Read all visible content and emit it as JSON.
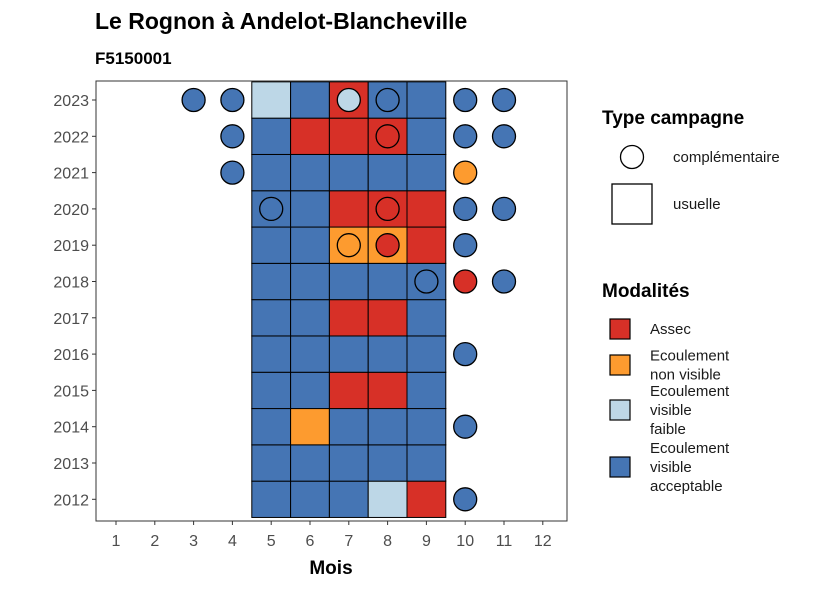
{
  "chart_data": {
    "type": "heatmap",
    "title": "Le Rognon à Andelot-Blancheville",
    "subtitle": "F5150001",
    "xlabel": "Mois",
    "ylabel": "",
    "x_ticks": [
      "1",
      "2",
      "3",
      "4",
      "5",
      "6",
      "7",
      "8",
      "9",
      "10",
      "11",
      "12"
    ],
    "years": [
      "2012",
      "2013",
      "2014",
      "2015",
      "2016",
      "2017",
      "2018",
      "2019",
      "2020",
      "2021",
      "2022",
      "2023"
    ],
    "xlim": [
      0.5,
      12.5
    ],
    "grid": false,
    "legend_position": "right",
    "modalites": [
      {
        "key": "assec",
        "label_lines": [
          "Assec"
        ],
        "color": "#d73027"
      },
      {
        "key": "non_visible",
        "label_lines": [
          "Ecoulement",
          "non visible"
        ],
        "color": "#fd9b2f"
      },
      {
        "key": "faible",
        "label_lines": [
          "Ecoulement",
          "visible",
          "faible"
        ],
        "color": "#bdd7e7"
      },
      {
        "key": "acceptable",
        "label_lines": [
          "Ecoulement",
          "visible",
          "acceptable"
        ],
        "color": "#4575b4"
      }
    ],
    "campaign_legend": {
      "title": "Type campagne",
      "items": [
        {
          "key": "complementaire",
          "label": "complémentaire",
          "shape": "circle"
        },
        {
          "key": "usuelle",
          "label": "usuelle",
          "shape": "square"
        }
      ]
    },
    "modalites_title": "Modalités",
    "usual": [
      {
        "year": "2012",
        "values": [
          [
            "5",
            "acceptable"
          ],
          [
            "6",
            "acceptable"
          ],
          [
            "7",
            "acceptable"
          ],
          [
            "8",
            "faible"
          ],
          [
            "9",
            "assec"
          ]
        ]
      },
      {
        "year": "2013",
        "values": [
          [
            "5",
            "acceptable"
          ],
          [
            "6",
            "acceptable"
          ],
          [
            "7",
            "acceptable"
          ],
          [
            "8",
            "acceptable"
          ],
          [
            "9",
            "acceptable"
          ]
        ]
      },
      {
        "year": "2014",
        "values": [
          [
            "5",
            "acceptable"
          ],
          [
            "6",
            "non_visible"
          ],
          [
            "7",
            "acceptable"
          ],
          [
            "8",
            "acceptable"
          ],
          [
            "9",
            "acceptable"
          ]
        ]
      },
      {
        "year": "2015",
        "values": [
          [
            "5",
            "acceptable"
          ],
          [
            "6",
            "acceptable"
          ],
          [
            "7",
            "assec"
          ],
          [
            "8",
            "assec"
          ],
          [
            "9",
            "acceptable"
          ]
        ]
      },
      {
        "year": "2016",
        "values": [
          [
            "5",
            "acceptable"
          ],
          [
            "6",
            "acceptable"
          ],
          [
            "7",
            "acceptable"
          ],
          [
            "8",
            "acceptable"
          ],
          [
            "9",
            "acceptable"
          ]
        ]
      },
      {
        "year": "2017",
        "values": [
          [
            "5",
            "acceptable"
          ],
          [
            "6",
            "acceptable"
          ],
          [
            "7",
            "assec"
          ],
          [
            "8",
            "assec"
          ],
          [
            "9",
            "acceptable"
          ]
        ]
      },
      {
        "year": "2018",
        "values": [
          [
            "5",
            "acceptable"
          ],
          [
            "6",
            "acceptable"
          ],
          [
            "7",
            "acceptable"
          ],
          [
            "8",
            "acceptable"
          ],
          [
            "9",
            "acceptable"
          ]
        ]
      },
      {
        "year": "2019",
        "values": [
          [
            "5",
            "acceptable"
          ],
          [
            "6",
            "acceptable"
          ],
          [
            "7",
            "non_visible"
          ],
          [
            "8",
            "non_visible"
          ],
          [
            "9",
            "assec"
          ]
        ]
      },
      {
        "year": "2020",
        "values": [
          [
            "5",
            "acceptable"
          ],
          [
            "6",
            "acceptable"
          ],
          [
            "7",
            "assec"
          ],
          [
            "8",
            "assec"
          ],
          [
            "9",
            "assec"
          ]
        ]
      },
      {
        "year": "2021",
        "values": [
          [
            "5",
            "acceptable"
          ],
          [
            "6",
            "acceptable"
          ],
          [
            "7",
            "acceptable"
          ],
          [
            "8",
            "acceptable"
          ],
          [
            "9",
            "acceptable"
          ]
        ]
      },
      {
        "year": "2022",
        "values": [
          [
            "5",
            "acceptable"
          ],
          [
            "6",
            "assec"
          ],
          [
            "7",
            "assec"
          ],
          [
            "8",
            "assec"
          ],
          [
            "9",
            "acceptable"
          ]
        ]
      },
      {
        "year": "2023",
        "values": [
          [
            "5",
            "faible"
          ],
          [
            "6",
            "acceptable"
          ],
          [
            "7",
            "assec"
          ],
          [
            "8",
            "acceptable"
          ],
          [
            "9",
            "acceptable"
          ]
        ]
      }
    ],
    "complementary": [
      {
        "year": "2012",
        "values": [
          [
            "10",
            "acceptable"
          ]
        ]
      },
      {
        "year": "2014",
        "values": [
          [
            "10",
            "acceptable"
          ]
        ]
      },
      {
        "year": "2016",
        "values": [
          [
            "10",
            "acceptable"
          ]
        ]
      },
      {
        "year": "2018",
        "values": [
          [
            "9",
            "acceptable"
          ],
          [
            "10",
            "assec"
          ],
          [
            "11",
            "acceptable"
          ]
        ]
      },
      {
        "year": "2019",
        "values": [
          [
            "7",
            "non_visible"
          ],
          [
            "8",
            "assec"
          ],
          [
            "10",
            "acceptable"
          ]
        ]
      },
      {
        "year": "2020",
        "values": [
          [
            "5",
            "acceptable"
          ],
          [
            "8",
            "assec"
          ],
          [
            "10",
            "acceptable"
          ],
          [
            "11",
            "acceptable"
          ]
        ]
      },
      {
        "year": "2021",
        "values": [
          [
            "4",
            "acceptable"
          ],
          [
            "10",
            "non_visible"
          ]
        ]
      },
      {
        "year": "2022",
        "values": [
          [
            "4",
            "acceptable"
          ],
          [
            "8",
            "assec"
          ],
          [
            "10",
            "acceptable"
          ],
          [
            "11",
            "acceptable"
          ]
        ]
      },
      {
        "year": "2023",
        "values": [
          [
            "3",
            "acceptable"
          ],
          [
            "4",
            "acceptable"
          ],
          [
            "7",
            "faible"
          ],
          [
            "8",
            "acceptable"
          ],
          [
            "10",
            "acceptable"
          ],
          [
            "11",
            "acceptable"
          ]
        ]
      }
    ]
  }
}
